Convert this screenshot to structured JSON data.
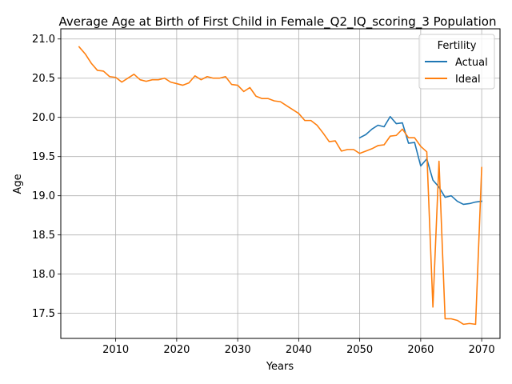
{
  "chart_data": {
    "type": "line",
    "title": "Average Age at Birth of First Child in Female_Q2_IQ_scoring_3 Population",
    "xlabel": "Years",
    "ylabel": "Age",
    "xlim": [
      2001,
      2073
    ],
    "ylim": [
      17.18,
      21.13
    ],
    "xticks": [
      2010,
      2020,
      2030,
      2040,
      2050,
      2060,
      2070
    ],
    "yticks": [
      17.5,
      18.0,
      18.5,
      19.0,
      19.5,
      20.0,
      20.5,
      21.0
    ],
    "xtick_labels": [
      "2010",
      "2020",
      "2030",
      "2040",
      "2050",
      "2060",
      "2070"
    ],
    "ytick_labels": [
      "17.5",
      "18.0",
      "18.5",
      "19.0",
      "19.5",
      "20.0",
      "20.5",
      "21.0"
    ],
    "grid": true,
    "legend": {
      "title": "Fertility",
      "position": "top-right"
    },
    "series": [
      {
        "name": "Actual",
        "color": "#1f77b4",
        "x": [
          2050,
          2051,
          2052,
          2053,
          2054,
          2055,
          2056,
          2057,
          2058,
          2059,
          2060,
          2061,
          2062,
          2063,
          2064,
          2065,
          2066,
          2067,
          2068,
          2069,
          2070
        ],
        "values": [
          19.74,
          19.78,
          19.85,
          19.9,
          19.88,
          20.01,
          19.92,
          19.93,
          19.67,
          19.68,
          19.38,
          19.47,
          19.2,
          19.11,
          18.98,
          19.0,
          18.93,
          18.89,
          18.9,
          18.92,
          18.93
        ]
      },
      {
        "name": "Ideal",
        "color": "#ff7f0e",
        "x": [
          2004,
          2005,
          2006,
          2007,
          2008,
          2009,
          2010,
          2011,
          2012,
          2013,
          2014,
          2015,
          2016,
          2017,
          2018,
          2019,
          2020,
          2021,
          2022,
          2023,
          2024,
          2025,
          2026,
          2027,
          2028,
          2029,
          2030,
          2031,
          2032,
          2033,
          2034,
          2035,
          2036,
          2037,
          2038,
          2039,
          2040,
          2041,
          2042,
          2043,
          2044,
          2045,
          2046,
          2047,
          2048,
          2049,
          2050,
          2051,
          2052,
          2053,
          2054,
          2055,
          2056,
          2057,
          2058,
          2059,
          2060,
          2061,
          2062,
          2063,
          2064,
          2065,
          2066,
          2067,
          2068,
          2069,
          2070
        ],
        "values": [
          20.9,
          20.81,
          20.69,
          20.6,
          20.59,
          20.52,
          20.51,
          20.45,
          20.5,
          20.55,
          20.48,
          20.46,
          20.48,
          20.48,
          20.5,
          20.45,
          20.43,
          20.41,
          20.44,
          20.53,
          20.48,
          20.52,
          20.5,
          20.5,
          20.52,
          20.42,
          20.41,
          20.33,
          20.38,
          20.27,
          20.24,
          20.24,
          20.21,
          20.2,
          20.15,
          20.1,
          20.05,
          19.96,
          19.96,
          19.9,
          19.8,
          19.69,
          19.7,
          19.57,
          19.59,
          19.59,
          19.54,
          19.57,
          19.6,
          19.64,
          19.65,
          19.76,
          19.77,
          19.85,
          19.74,
          19.74,
          19.63,
          19.56,
          17.58,
          19.44,
          17.43,
          17.43,
          17.41,
          17.36,
          17.37,
          17.36,
          19.36
        ]
      }
    ]
  }
}
